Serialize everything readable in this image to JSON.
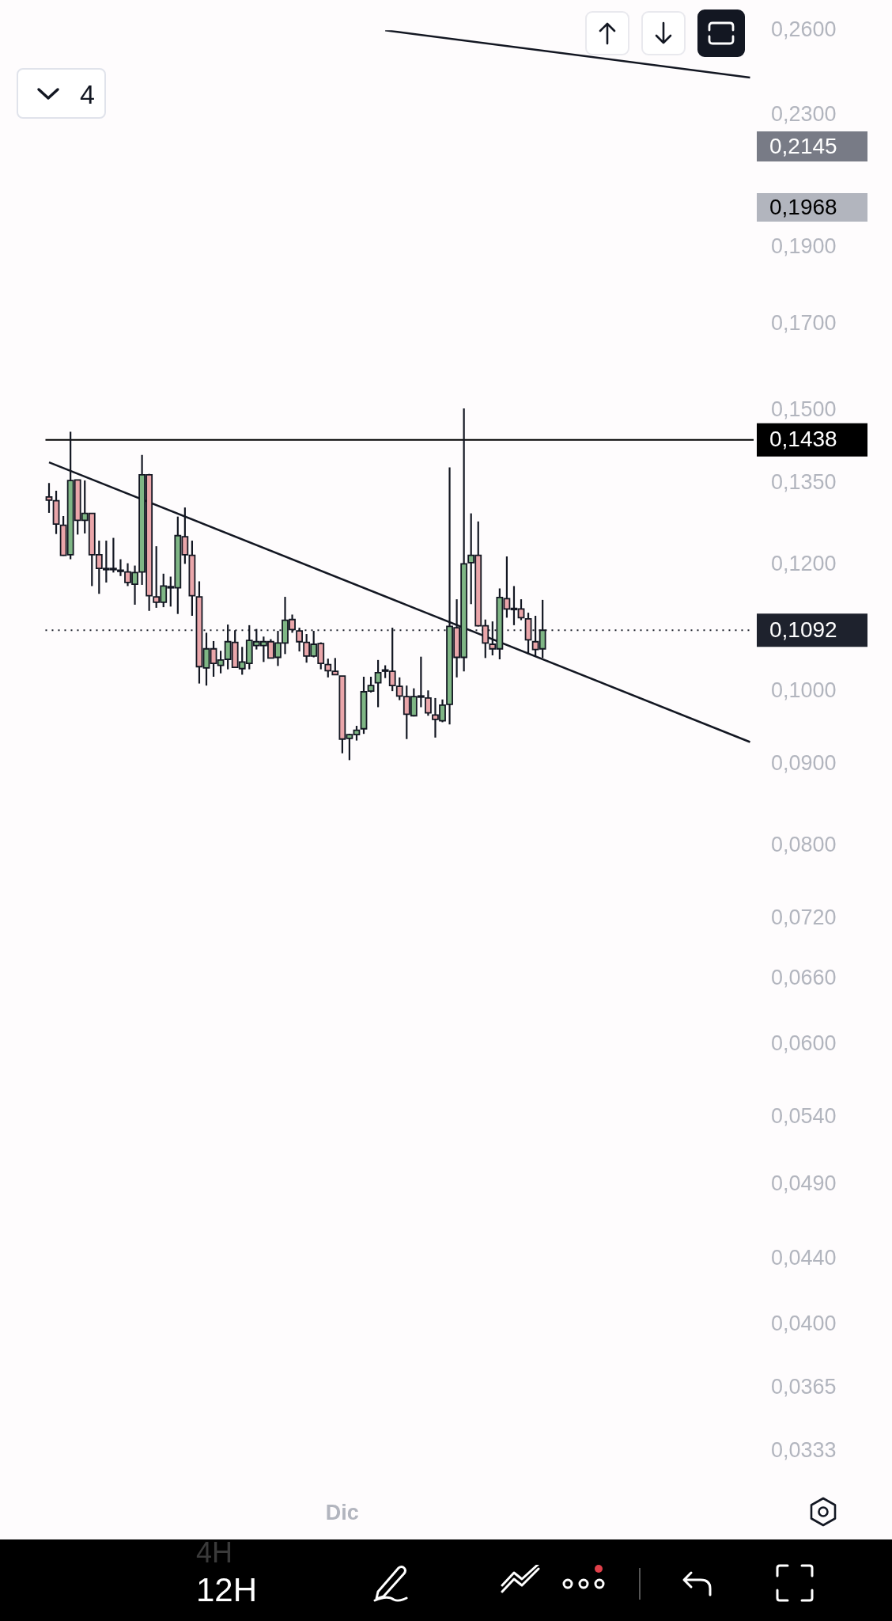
{
  "chart_data": {
    "type": "candlestick",
    "categories": [
      null,
      null,
      null,
      null,
      null,
      null,
      null,
      null,
      null,
      null,
      null,
      null,
      null,
      null,
      null,
      null,
      null,
      null,
      null,
      null,
      null,
      null,
      null,
      null,
      null,
      null,
      null,
      null,
      null,
      null,
      null,
      null,
      null,
      null,
      null,
      null,
      null,
      null,
      null,
      null,
      null,
      "Dic",
      null,
      null,
      null,
      null,
      null,
      null,
      null,
      null,
      null,
      null,
      null,
      null,
      null,
      null,
      null,
      null,
      null,
      null,
      null,
      null,
      null,
      null,
      null,
      null,
      null,
      null,
      null,
      null,
      null,
      null,
      null,
      null,
      null,
      null,
      null,
      null,
      null,
      null,
      null,
      null,
      null,
      null,
      null,
      null,
      null,
      null,
      null,
      null,
      null,
      null,
      null,
      null,
      null,
      null,
      null,
      null,
      null
    ],
    "ohlc": [
      [
        0.1324,
        0.1351,
        0.1294,
        0.1318
      ],
      [
        0.1317,
        0.1336,
        0.1255,
        0.1273
      ],
      [
        0.1271,
        0.1288,
        0.1216,
        0.1217
      ],
      [
        0.1218,
        0.1455,
        0.121,
        0.1356
      ],
      [
        0.1357,
        0.1357,
        0.1254,
        0.128
      ],
      [
        0.128,
        0.1356,
        0.1256,
        0.1293
      ],
      [
        0.1293,
        0.1293,
        0.1164,
        0.1218
      ],
      [
        0.1218,
        0.1243,
        0.1151,
        0.1194
      ],
      [
        0.1194,
        0.1243,
        0.117,
        0.1194
      ],
      [
        0.1194,
        0.1248,
        0.1187,
        0.1194
      ],
      [
        0.1191,
        0.121,
        0.1181,
        0.1191
      ],
      [
        0.1188,
        0.1203,
        0.1164,
        0.117
      ],
      [
        0.1167,
        0.1199,
        0.1133,
        0.1187
      ],
      [
        0.1188,
        0.1407,
        0.1166,
        0.1367
      ],
      [
        0.1367,
        0.1369,
        0.1123,
        0.1148
      ],
      [
        0.1146,
        0.1233,
        0.1128,
        0.1137
      ],
      [
        0.1137,
        0.1185,
        0.1129,
        0.1164
      ],
      [
        0.1163,
        0.118,
        0.113,
        0.1163
      ],
      [
        0.1161,
        0.1287,
        0.1118,
        0.1252
      ],
      [
        0.125,
        0.1304,
        0.1202,
        0.1218
      ],
      [
        0.1217,
        0.1243,
        0.1115,
        0.1148
      ],
      [
        0.1146,
        0.1172,
        0.1011,
        0.1036
      ],
      [
        0.1034,
        0.1088,
        0.1008,
        0.1063
      ],
      [
        0.1063,
        0.1075,
        0.1021,
        0.1041
      ],
      [
        0.1038,
        0.106,
        0.1026,
        0.1046
      ],
      [
        0.1047,
        0.1101,
        0.1032,
        0.1074
      ],
      [
        0.1073,
        0.1092,
        0.1034,
        0.1035
      ],
      [
        0.1033,
        0.1066,
        0.1024,
        0.1043
      ],
      [
        0.1041,
        0.11,
        0.1032,
        0.1076
      ],
      [
        0.1068,
        0.1094,
        0.1062,
        0.1074
      ],
      [
        0.1068,
        0.1082,
        0.1043,
        0.1074
      ],
      [
        0.1074,
        0.1078,
        0.1049,
        0.1049
      ],
      [
        0.105,
        0.1091,
        0.1037,
        0.1072
      ],
      [
        0.1072,
        0.1146,
        0.1055,
        0.1108
      ],
      [
        0.1109,
        0.1117,
        0.1088,
        0.1093
      ],
      [
        0.1091,
        0.1096,
        0.1059,
        0.1074
      ],
      [
        0.1073,
        0.1086,
        0.1042,
        0.1052
      ],
      [
        0.1052,
        0.1091,
        0.105,
        0.107
      ],
      [
        0.1071,
        0.1073,
        0.1032,
        0.1041
      ],
      [
        0.1039,
        0.1048,
        0.102,
        0.103
      ],
      [
        0.1029,
        0.1049,
        0.1024,
        0.1024
      ],
      [
        0.1022,
        0.1022,
        0.0914,
        0.0933
      ],
      [
        0.0934,
        0.094,
        0.0905,
        0.0939
      ],
      [
        0.0939,
        0.0951,
        0.0931,
        0.0945
      ],
      [
        0.0947,
        0.1021,
        0.094,
        0.0999
      ],
      [
        0.1,
        0.1021,
        0.0998,
        0.1008
      ],
      [
        0.1012,
        0.1046,
        0.0977,
        0.1027
      ],
      [
        0.1031,
        0.1038,
        0.1019,
        0.1031
      ],
      [
        0.1029,
        0.1096,
        0.1,
        0.1008
      ],
      [
        0.1007,
        0.102,
        0.0987,
        0.0993
      ],
      [
        0.0992,
        0.1008,
        0.0933,
        0.0967
      ],
      [
        0.0965,
        0.1004,
        0.0964,
        0.0992
      ],
      [
        0.0993,
        0.1051,
        0.0977,
        0.0993
      ],
      [
        0.099,
        0.1001,
        0.0965,
        0.0969
      ],
      [
        0.0966,
        0.099,
        0.0935,
        0.096
      ],
      [
        0.0958,
        0.0988,
        0.0956,
        0.098
      ],
      [
        0.0981,
        0.1382,
        0.0953,
        0.1098
      ],
      [
        0.1096,
        0.1142,
        0.102,
        0.105
      ],
      [
        0.105,
        0.1505,
        0.1029,
        0.1202
      ],
      [
        0.1204,
        0.1293,
        0.1134,
        0.1217
      ],
      [
        0.1217,
        0.1278,
        0.1098,
        0.1099
      ],
      [
        0.1099,
        0.1109,
        0.1049,
        0.1072
      ],
      [
        0.107,
        0.1106,
        0.1053,
        0.1063
      ],
      [
        0.1063,
        0.116,
        0.1047,
        0.1145
      ],
      [
        0.1143,
        0.1215,
        0.1112,
        0.1126
      ],
      [
        0.1127,
        0.1164,
        0.11,
        0.1127
      ],
      [
        0.1126,
        0.1142,
        0.1108,
        0.1112
      ],
      [
        0.111,
        0.112,
        0.1055,
        0.1077
      ],
      [
        0.1074,
        0.1115,
        0.1051,
        0.1062
      ],
      [
        0.1063,
        0.1141,
        0.1049,
        0.1092
      ],
      null,
      null,
      null,
      null,
      null,
      null,
      null,
      null,
      null,
      null,
      null,
      null,
      null,
      null,
      null,
      null,
      null,
      null,
      null,
      null,
      null,
      null,
      null,
      null,
      null,
      null,
      null,
      null,
      null
    ],
    "colors": [
      "#eaa6aa",
      "#eaa6aa",
      "#eaa6aa",
      "#7fb685",
      "#eaa6aa",
      "#7fb685",
      "#eaa6aa",
      "#eaa6aa",
      "#7fb685",
      "#7fb685",
      "#7fb685",
      "#eaa6aa",
      "#7fb685",
      "#7fb685",
      "#eaa6aa",
      "#eaa6aa",
      "#7fb685",
      "#7fb685",
      "#7fb685",
      "#eaa6aa",
      "#eaa6aa",
      "#eaa6aa",
      "#7fb685",
      "#eaa6aa",
      "#7fb685",
      "#7fb685",
      "#eaa6aa",
      "#7fb685",
      "#7fb685",
      "#7fb685",
      "#7fb685",
      "#eaa6aa",
      "#7fb685",
      "#7fb685",
      "#eaa6aa",
      "#eaa6aa",
      "#eaa6aa",
      "#7fb685",
      "#eaa6aa",
      "#eaa6aa",
      "#eaa6aa",
      "#eaa6aa",
      "#7fb685",
      "#7fb685",
      "#7fb685",
      "#7fb685",
      "#7fb685",
      "#7fb685",
      "#eaa6aa",
      "#eaa6aa",
      "#eaa6aa",
      "#7fb685",
      "#7fb685",
      "#eaa6aa",
      "#eaa6aa",
      "#7fb685",
      "#7fb685",
      "#eaa6aa",
      "#7fb685",
      "#7fb685",
      "#eaa6aa",
      "#eaa6aa",
      "#eaa6aa",
      "#7fb685",
      "#eaa6aa",
      "#7fb685",
      "#eaa6aa",
      "#eaa6aa",
      "#eaa6aa",
      "#7fb685",
      null,
      null,
      null,
      null,
      null,
      null,
      null,
      null,
      null,
      null,
      null,
      null,
      null,
      null,
      null,
      null,
      null,
      null,
      null,
      null,
      null,
      null,
      null,
      null,
      null,
      null,
      null,
      null,
      null
    ],
    "series": [
      {
        "type": "line",
        "color": "#131722",
        "values": [
          null,
          null,
          null,
          null,
          null,
          null,
          null,
          null,
          null,
          null,
          null,
          null,
          null,
          null,
          null,
          null,
          null,
          null,
          null,
          null,
          null,
          null,
          null,
          null,
          null,
          null,
          null,
          null,
          null,
          null,
          null,
          null,
          null,
          null,
          null,
          null,
          null,
          null,
          null,
          null,
          null,
          null,
          null,
          null,
          null,
          null,
          null,
          0.26,
          null,
          null,
          null,
          null,
          null,
          null,
          null,
          null,
          null,
          null,
          null,
          null,
          null,
          null,
          null,
          null,
          null,
          null,
          null,
          null,
          null,
          null,
          null,
          null,
          null,
          null,
          null,
          null,
          null,
          null,
          null,
          null,
          null,
          null,
          null,
          null,
          null,
          null,
          null,
          null,
          null,
          null,
          null,
          null,
          null,
          null,
          null,
          null,
          null,
          null,
          0.2428
        ]
      },
      {
        "type": "line",
        "color": "#131722",
        "values": [
          0.1392,
          null,
          null,
          null,
          null,
          null,
          null,
          null,
          null,
          null,
          null,
          null,
          null,
          null,
          null,
          null,
          null,
          null,
          null,
          null,
          null,
          null,
          null,
          null,
          null,
          null,
          null,
          null,
          null,
          null,
          null,
          null,
          null,
          null,
          null,
          null,
          null,
          null,
          null,
          null,
          null,
          null,
          null,
          null,
          null,
          null,
          null,
          null,
          null,
          null,
          null,
          null,
          null,
          null,
          null,
          null,
          null,
          null,
          null,
          null,
          null,
          null,
          null,
          null,
          null,
          null,
          null,
          null,
          null,
          null,
          null,
          null,
          null,
          null,
          null,
          null,
          null,
          null,
          null,
          null,
          null,
          null,
          null,
          null,
          null,
          null,
          null,
          null,
          null,
          null,
          null,
          null,
          null,
          null,
          null,
          null,
          null,
          null,
          0.0929
        ]
      }
    ],
    "log": true,
    "ylim": [
      0.0333,
      0.26
    ],
    "yticks": [
      {
        "value": 0.0333,
        "label": "0,0333"
      },
      {
        "value": 0.0365,
        "label": "0,0365"
      },
      {
        "value": 0.04,
        "label": "0,0400"
      },
      {
        "value": 0.044,
        "label": "0,0440"
      },
      {
        "value": 0.049,
        "label": "0,0490"
      },
      {
        "value": 0.054,
        "label": "0,0540"
      },
      {
        "value": 0.06,
        "label": "0,0600"
      },
      {
        "value": 0.066,
        "label": "0,0660"
      },
      {
        "value": 0.072,
        "label": "0,0720"
      },
      {
        "value": 0.08,
        "label": "0,0800"
      },
      {
        "value": 0.09,
        "label": "0,0900"
      },
      {
        "value": 0.1,
        "label": "0,1000"
      },
      {
        "value": 0.12,
        "label": "0,1200"
      },
      {
        "value": 0.135,
        "label": "0,1350"
      },
      {
        "value": 0.15,
        "label": "0,1500"
      },
      {
        "value": 0.17,
        "label": "0,1700"
      },
      {
        "value": 0.19,
        "label": "0,1900"
      },
      {
        "value": 0.23,
        "label": "0,2300"
      },
      {
        "value": 0.26,
        "label": "0,2600"
      }
    ],
    "ref_lines": [
      {
        "axis": "y",
        "value": 0.1438,
        "label": "0,1438",
        "color": "#000000",
        "line_style": "solid"
      },
      {
        "axis": "y",
        "value": 0.1092,
        "label": "0,1092",
        "color": "#1e222d",
        "line_style": "dotted"
      }
    ],
    "annotations": [
      "4",
      "12H",
      "4H",
      "0,2145",
      "0,1968"
    ]
  }
}
